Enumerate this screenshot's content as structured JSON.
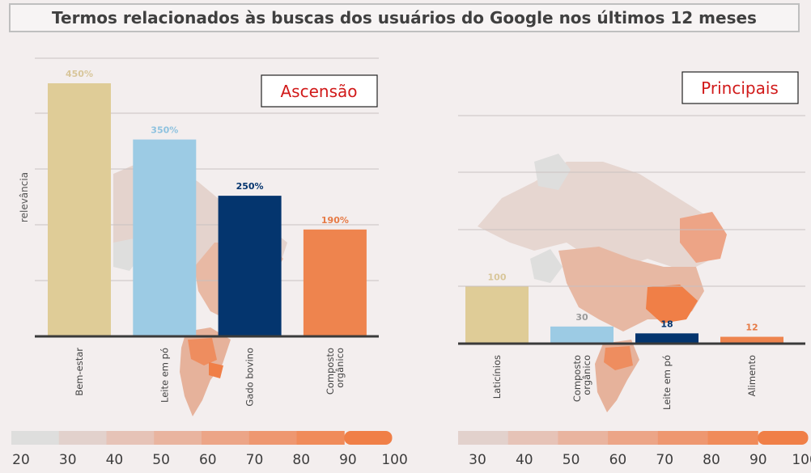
{
  "title": "Termos relacionados às buscas dos usuários do Google nos últimos 12 meses",
  "scale": {
    "colors": [
      "#dededd",
      "#e2d1cc",
      "#e6c3b7",
      "#e9b49f",
      "#eca587",
      "#ee9770",
      "#f08b5a",
      "#f07f47"
    ],
    "left_labels": [
      "20",
      "30",
      "40",
      "50",
      "60",
      "70",
      "80",
      "90",
      "100"
    ],
    "right_labels": [
      "30",
      "40",
      "50",
      "60",
      "70",
      "80",
      "90",
      "100"
    ]
  },
  "chart_data": [
    {
      "type": "bar",
      "title": "Ascensão",
      "ylabel": "relevância",
      "categories": [
        "Bem-estar",
        "Leite em pó",
        "Gado bovino",
        "Composto orgânico"
      ],
      "values": [
        450,
        350,
        250,
        190
      ],
      "data_labels": [
        "450%",
        "350%",
        "250%",
        "190%"
      ],
      "colors": [
        "#dfcc97",
        "#9ccbe4",
        "#04356e",
        "#ee844e"
      ],
      "label_colors": [
        "#d8c69a",
        "#8ec2df",
        "#04356e",
        "#e67a45"
      ],
      "ylim": [
        0,
        450
      ],
      "grid": true
    },
    {
      "type": "bar",
      "title": "Principais",
      "categories": [
        "Laticínios",
        "Composto orgânico",
        "Leite em pó",
        "Alimento"
      ],
      "values": [
        100,
        30,
        18,
        12
      ],
      "data_labels": [
        "100",
        "30",
        "18",
        "12"
      ],
      "colors": [
        "#dfcc97",
        "#9ccbe4",
        "#04356e",
        "#ee844e"
      ],
      "label_colors": [
        "#d8c69a",
        "#9a9a9a",
        "#04356e",
        "#e67a45"
      ],
      "ylim": [
        0,
        400
      ],
      "grid": true
    }
  ]
}
